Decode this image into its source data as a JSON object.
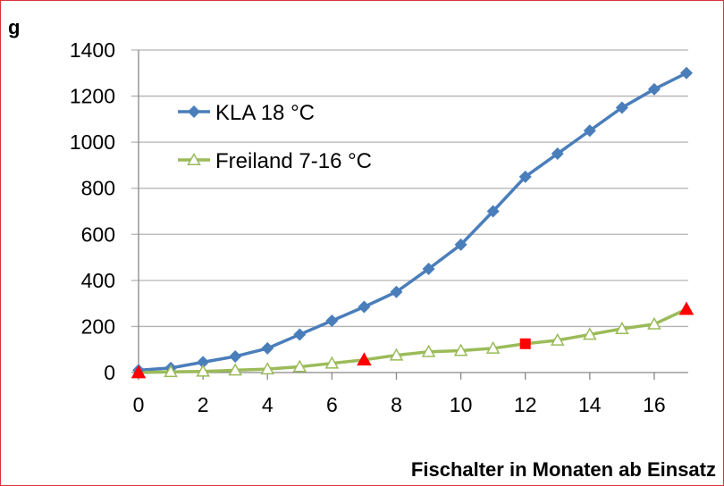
{
  "chart_data": {
    "type": "line",
    "ylabel": "g",
    "xlabel": "Fischalter in Monaten ab Einsatz",
    "xlim": [
      0,
      17
    ],
    "ylim": [
      0,
      1400
    ],
    "xticks": [
      0,
      2,
      4,
      6,
      8,
      10,
      12,
      14,
      16
    ],
    "yticks": [
      0,
      200,
      400,
      600,
      800,
      1000,
      1200,
      1400
    ],
    "grid": "horizontal",
    "legend_position": "top-left",
    "x": [
      0,
      1,
      2,
      3,
      4,
      5,
      6,
      7,
      8,
      9,
      10,
      11,
      12,
      13,
      14,
      15,
      16,
      17
    ],
    "series": [
      {
        "name": "KLA 18 °C",
        "color": "#4a7ebb",
        "marker": "diamond",
        "values": [
          10,
          20,
          45,
          70,
          105,
          165,
          225,
          285,
          350,
          450,
          555,
          700,
          850,
          950,
          1050,
          1150,
          1230,
          1300
        ]
      },
      {
        "name": "Freiland 7-16 °C",
        "color": "#9bbb59",
        "marker": "open-triangle",
        "values": [
          0,
          3,
          5,
          10,
          15,
          25,
          40,
          55,
          75,
          90,
          95,
          105,
          125,
          140,
          165,
          190,
          210,
          275
        ]
      }
    ],
    "highlight_markers": [
      {
        "series": 1,
        "x": 0,
        "shape": "triangle",
        "color": "#ff0000"
      },
      {
        "series": 1,
        "x": 7,
        "shape": "triangle",
        "color": "#ff0000"
      },
      {
        "series": 1,
        "x": 12,
        "shape": "square",
        "color": "#ff0000"
      },
      {
        "series": 1,
        "x": 17,
        "shape": "triangle",
        "color": "#ff0000"
      }
    ]
  }
}
